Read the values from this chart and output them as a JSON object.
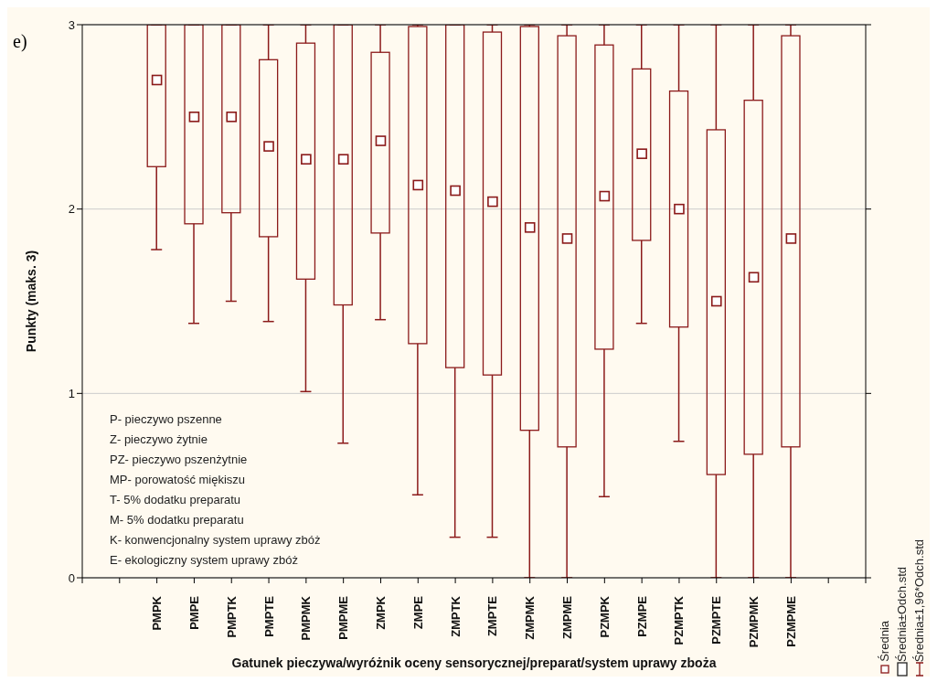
{
  "chart_data": {
    "type": "box",
    "xlabel": "Gatunek pieczywa/wyróżnik oceny sensorycznej/preparat/system uprawy zboża",
    "ylabel": "Punkty (maks. 3)",
    "categories": [
      "PMPK",
      "PMPE",
      "PMPTK",
      "PMPTE",
      "PMPMK",
      "PMPME",
      "ZMPK",
      "ZMPE",
      "ZMPTK",
      "ZMPTE",
      "ZMPMK",
      "ZMPME",
      "PZMPK",
      "PZMPE",
      "PZMPTK",
      "PZMPTE",
      "PZMPMK",
      "PZMPME"
    ],
    "boxes": [
      {
        "low": 1.78,
        "q1": 2.23,
        "median": 2.7,
        "q3": 3,
        "high": 3
      },
      {
        "low": 1.38,
        "q1": 1.92,
        "median": 2.5,
        "q3": 3,
        "high": 3
      },
      {
        "low": 1.5,
        "q1": 1.98,
        "median": 2.5,
        "q3": 3,
        "high": 3
      },
      {
        "low": 1.39,
        "q1": 1.85,
        "median": 2.34,
        "q3": 2.81,
        "high": 3
      },
      {
        "low": 1.01,
        "q1": 1.62,
        "median": 2.27,
        "q3": 2.9,
        "high": 3
      },
      {
        "low": 0.73,
        "q1": 1.48,
        "median": 2.27,
        "q3": 3,
        "high": 3
      },
      {
        "low": 1.4,
        "q1": 1.87,
        "median": 2.37,
        "q3": 2.85,
        "high": 3
      },
      {
        "low": 0.45,
        "q1": 1.27,
        "median": 2.13,
        "q3": 2.99,
        "high": 3
      },
      {
        "low": 0.22,
        "q1": 1.14,
        "median": 2.1,
        "q3": 3,
        "high": 3
      },
      {
        "low": 0.22,
        "q1": 1.1,
        "median": 2.04,
        "q3": 2.96,
        "high": 3
      },
      {
        "low": 0,
        "q1": 0.8,
        "median": 1.9,
        "q3": 2.99,
        "high": 3
      },
      {
        "low": 0,
        "q1": 0.71,
        "median": 1.84,
        "q3": 2.94,
        "high": 3
      },
      {
        "low": 0.44,
        "q1": 1.24,
        "median": 2.07,
        "q3": 2.89,
        "high": 3
      },
      {
        "low": 1.38,
        "q1": 1.83,
        "median": 2.3,
        "q3": 2.76,
        "high": 3
      },
      {
        "low": 0.74,
        "q1": 1.36,
        "median": 2.0,
        "q3": 2.64,
        "high": 3
      },
      {
        "low": 0,
        "q1": 0.56,
        "median": 1.5,
        "q3": 2.43,
        "high": 3
      },
      {
        "low": 0,
        "q1": 0.67,
        "median": 1.63,
        "q3": 2.59,
        "high": 3
      },
      {
        "low": 0,
        "q1": 0.71,
        "median": 1.84,
        "q3": 2.94,
        "high": 3
      }
    ],
    "color": "#8b1a1a",
    "ylim": [
      0,
      3
    ],
    "yticks": [
      0,
      1,
      2,
      3
    ],
    "grid": "y",
    "annotations": [
      "e)",
      "P- pieczywo pszenne",
      "Z- pieczywo żytnie",
      "PZ- pieczywo pszenżytnie",
      "MP- porowatość miękiszu",
      "T- 5% dodatku preparatu",
      "M- 5% dodatku preparatu",
      "K- konwencjonalny system uprawy zbóż",
      "E- ekologiczny system uprawy zbóż",
      "Średnia",
      "Średnia±Odch.std",
      "Średnia±1,96*Odch.std"
    ]
  }
}
